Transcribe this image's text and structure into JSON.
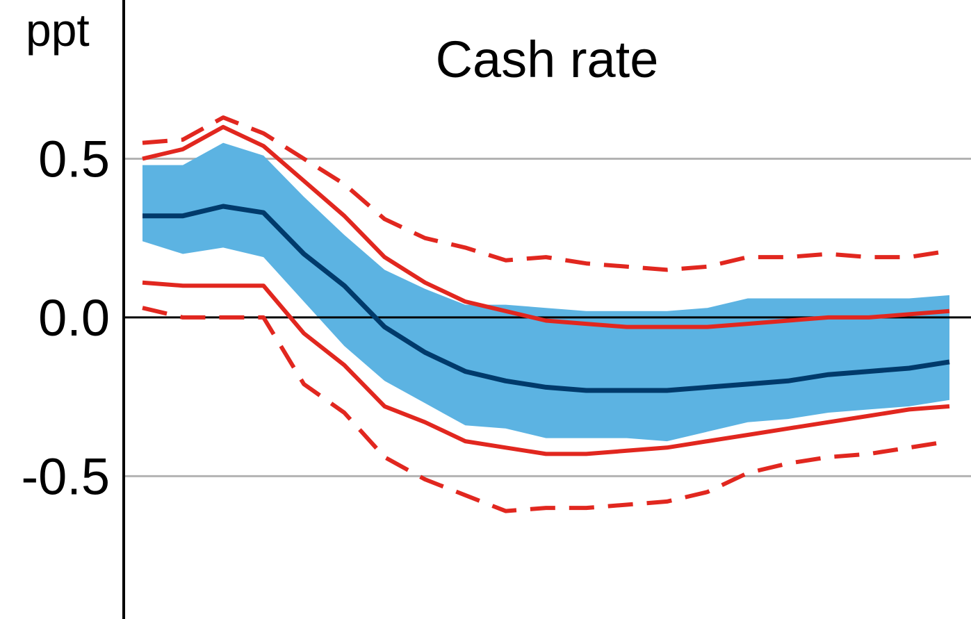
{
  "chart_data": {
    "type": "line",
    "title": "Cash rate",
    "ylabel": "ppt",
    "xlabel": "",
    "ylim": [
      -0.95,
      1.0
    ],
    "yticks": [
      0.5,
      0.0,
      -0.5
    ],
    "ytick_labels": [
      "0.5",
      "0.0",
      "-0.5"
    ],
    "grid": true,
    "legend": "none",
    "x": [
      0,
      1,
      2,
      3,
      4,
      5,
      6,
      7,
      8,
      9,
      10,
      11,
      12,
      13,
      14,
      15,
      16,
      17,
      18,
      19,
      20
    ],
    "band": {
      "upper": [
        0.48,
        0.48,
        0.55,
        0.51,
        0.38,
        0.26,
        0.15,
        0.09,
        0.04,
        0.04,
        0.03,
        0.02,
        0.02,
        0.02,
        0.03,
        0.06,
        0.06,
        0.06,
        0.06,
        0.06,
        0.07
      ],
      "lower": [
        0.24,
        0.2,
        0.22,
        0.19,
        0.05,
        -0.09,
        -0.2,
        -0.27,
        -0.34,
        -0.35,
        -0.38,
        -0.38,
        -0.38,
        -0.39,
        -0.36,
        -0.33,
        -0.32,
        -0.3,
        -0.29,
        -0.28,
        -0.26
      ]
    },
    "series": [
      {
        "values": [
          0.32,
          0.32,
          0.35,
          0.33,
          0.2,
          0.1,
          -0.03,
          -0.11,
          -0.17,
          -0.2,
          -0.22,
          -0.23,
          -0.23,
          -0.23,
          -0.22,
          -0.21,
          -0.2,
          -0.18,
          -0.17,
          -0.16,
          -0.14
        ]
      },
      {
        "values": [
          0.5,
          0.53,
          0.6,
          0.54,
          0.43,
          0.32,
          0.19,
          0.11,
          0.05,
          0.02,
          -0.01,
          -0.02,
          -0.03,
          -0.03,
          -0.03,
          -0.02,
          -0.01,
          0.0,
          0.0,
          0.01,
          0.02
        ]
      },
      {
        "values": [
          0.11,
          0.1,
          0.1,
          0.1,
          -0.05,
          -0.15,
          -0.28,
          -0.33,
          -0.39,
          -0.41,
          -0.43,
          -0.43,
          -0.42,
          -0.41,
          -0.39,
          -0.37,
          -0.35,
          -0.33,
          -0.31,
          -0.29,
          -0.28
        ]
      },
      {
        "values": [
          0.55,
          0.56,
          0.63,
          0.58,
          0.5,
          0.42,
          0.31,
          0.25,
          0.22,
          0.18,
          0.19,
          0.17,
          0.16,
          0.15,
          0.16,
          0.19,
          0.19,
          0.2,
          0.19,
          0.19,
          0.21
        ]
      },
      {
        "values": [
          0.03,
          0.0,
          0.0,
          0.0,
          -0.21,
          -0.3,
          -0.44,
          -0.51,
          -0.56,
          -0.61,
          -0.6,
          -0.6,
          -0.59,
          -0.58,
          -0.55,
          -0.49,
          -0.46,
          -0.44,
          -0.43,
          -0.41,
          -0.39
        ]
      }
    ]
  },
  "colors": {
    "band": "#5cb3e2",
    "central": "#003a6b",
    "interval": "#e1271f",
    "grid": "#b3b3b3",
    "axis": "#000000"
  }
}
